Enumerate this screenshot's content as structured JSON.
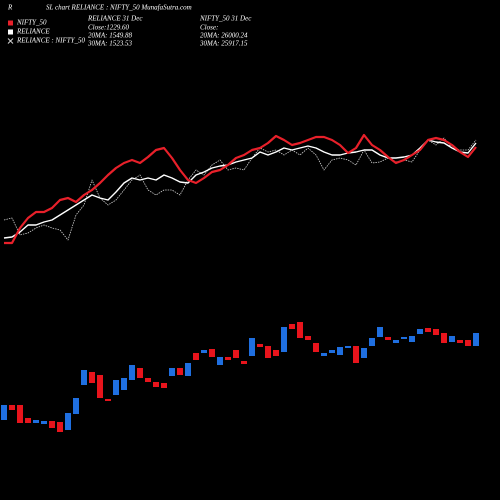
{
  "header": {
    "prefix": "R",
    "title": "SL chart RELIANCE : NIFTY_50  MunafaSutra.com",
    "info_left": [
      "RELIANCE 31 Dec",
      "Close:1229.60",
      "20MA: 1549.88",
      "30MA: 1523.53"
    ],
    "info_right": [
      "NIFTY_50  31 Dec",
      "Close:",
      "20MA: 26000.24",
      "30MA: 25917.15"
    ]
  },
  "chart_data": {
    "type": "candlestick",
    "ylim": [
      0,
      500
    ],
    "up_color": "#1f6fe0",
    "down_color": "#e8141c",
    "candles": {
      "open": [
        80,
        95,
        95,
        82,
        77,
        76,
        79,
        78,
        70,
        86,
        115,
        128,
        125,
        101,
        105,
        110,
        120,
        132,
        122,
        118,
        117,
        124,
        132,
        124,
        147,
        147,
        151,
        135,
        143,
        150,
        139,
        144,
        156,
        154,
        150,
        148,
        176,
        178,
        164,
        157,
        144,
        147,
        145,
        152,
        154,
        142,
        154,
        163,
        163,
        157,
        161,
        158,
        166,
        172,
        171,
        167,
        158,
        160,
        160,
        154
      ],
      "close": [
        95,
        90,
        77,
        77,
        80,
        79,
        72,
        68,
        87,
        102,
        130,
        117,
        102,
        99,
        120,
        122,
        135,
        122,
        118,
        113,
        112,
        132,
        125,
        137,
        140,
        150,
        143,
        143,
        140,
        142,
        136,
        162,
        153,
        142,
        144,
        173,
        171,
        162,
        160,
        148,
        147,
        150,
        153,
        154,
        137,
        152,
        162,
        173,
        160,
        160,
        163,
        164,
        171,
        168,
        165,
        157,
        164,
        157,
        154,
        167
      ]
    },
    "series": [
      {
        "name": "NIFTY_50",
        "color": "#e8202a",
        "style": "solid",
        "marker": "square",
        "values": [
          257,
          257,
          272,
          282,
          288,
          288,
          292,
          300,
          302,
          298,
          305,
          310,
          317,
          325,
          332,
          337,
          340,
          337,
          343,
          350,
          352,
          342,
          330,
          320,
          317,
          322,
          328,
          330,
          335,
          342,
          345,
          350,
          352,
          357,
          364,
          360,
          355,
          357,
          360,
          363,
          363,
          360,
          355,
          347,
          352,
          365,
          355,
          350,
          343,
          337,
          340,
          345,
          350,
          360,
          362,
          360,
          355,
          348,
          343,
          353
        ]
      },
      {
        "name": "RELIANCE",
        "color": "#ffffff",
        "style": "solid",
        "marker": "square",
        "values": [
          262,
          263,
          268,
          275,
          275,
          278,
          280,
          285,
          290,
          295,
          300,
          305,
          302,
          300,
          308,
          317,
          322,
          320,
          322,
          320,
          325,
          322,
          318,
          317,
          325,
          328,
          332,
          334,
          335,
          338,
          340,
          342,
          348,
          345,
          348,
          352,
          350,
          352,
          354,
          352,
          348,
          345,
          345,
          347,
          348,
          350,
          350,
          345,
          342,
          342,
          343,
          345,
          352,
          360,
          358,
          357,
          352,
          348,
          347,
          357
        ]
      },
      {
        "name": "RELIANCE : NIFTY_50",
        "color": "#d0d0d0",
        "style": "dotted",
        "marker": "cross",
        "values": [
          280,
          282,
          265,
          267,
          272,
          275,
          272,
          270,
          260,
          285,
          295,
          320,
          302,
          295,
          300,
          310,
          320,
          325,
          310,
          305,
          310,
          310,
          305,
          320,
          330,
          325,
          335,
          340,
          330,
          332,
          330,
          342,
          352,
          348,
          350,
          345,
          350,
          345,
          352,
          345,
          330,
          340,
          342,
          340,
          335,
          350,
          337,
          338,
          342,
          338,
          340,
          338,
          350,
          360,
          355,
          362,
          352,
          350,
          350,
          360
        ]
      }
    ]
  }
}
